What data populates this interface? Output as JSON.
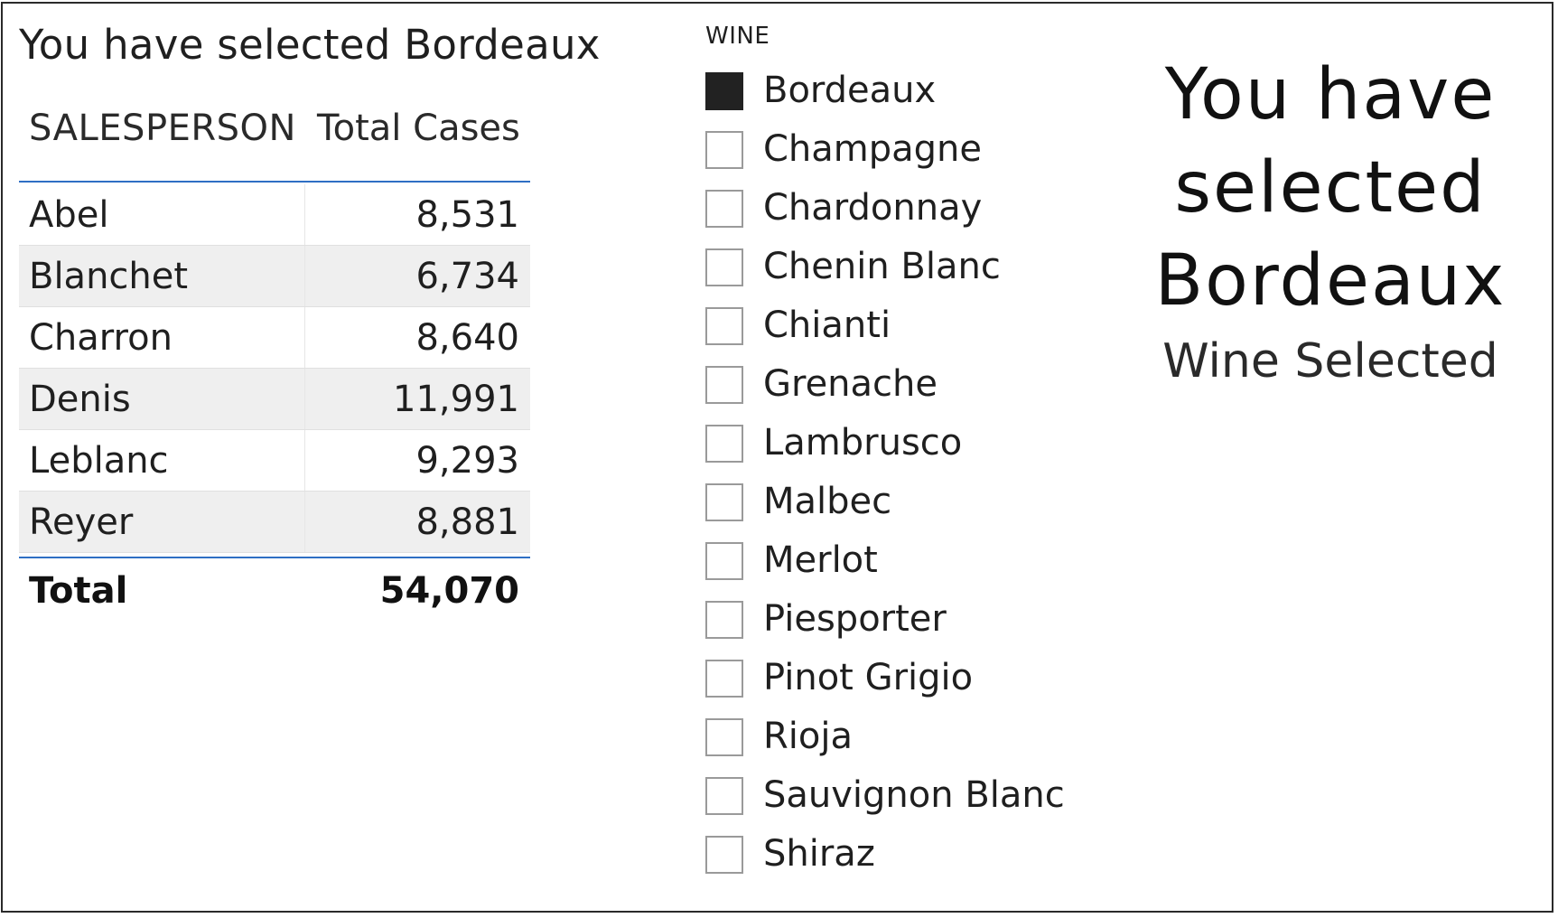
{
  "table": {
    "title": "You have selected Bordeaux",
    "headers": {
      "salesperson": "SALESPERSON",
      "total_cases": "Total Cases"
    },
    "rows": [
      {
        "name": "Abel",
        "value": "8,531"
      },
      {
        "name": "Blanchet",
        "value": "6,734"
      },
      {
        "name": "Charron",
        "value": "8,640"
      },
      {
        "name": "Denis",
        "value": "11,991"
      },
      {
        "name": "Leblanc",
        "value": "9,293"
      },
      {
        "name": "Reyer",
        "value": "8,881"
      }
    ],
    "total": {
      "label": "Total",
      "value": "54,070"
    },
    "accent_color": "#2f6fc4"
  },
  "slicer": {
    "header": "WINE",
    "items": [
      {
        "label": "Bordeaux",
        "checked": true
      },
      {
        "label": "Champagne",
        "checked": false
      },
      {
        "label": "Chardonnay",
        "checked": false
      },
      {
        "label": "Chenin Blanc",
        "checked": false
      },
      {
        "label": "Chianti",
        "checked": false
      },
      {
        "label": "Grenache",
        "checked": false
      },
      {
        "label": "Lambrusco",
        "checked": false
      },
      {
        "label": "Malbec",
        "checked": false
      },
      {
        "label": "Merlot",
        "checked": false
      },
      {
        "label": "Piesporter",
        "checked": false
      },
      {
        "label": "Pinot Grigio",
        "checked": false
      },
      {
        "label": "Rioja",
        "checked": false
      },
      {
        "label": "Sauvignon Blanc",
        "checked": false
      },
      {
        "label": "Shiraz",
        "checked": false
      }
    ]
  },
  "card": {
    "value_lines": [
      "You have",
      "selected",
      "Bordeaux"
    ],
    "label": "Wine Selected"
  }
}
